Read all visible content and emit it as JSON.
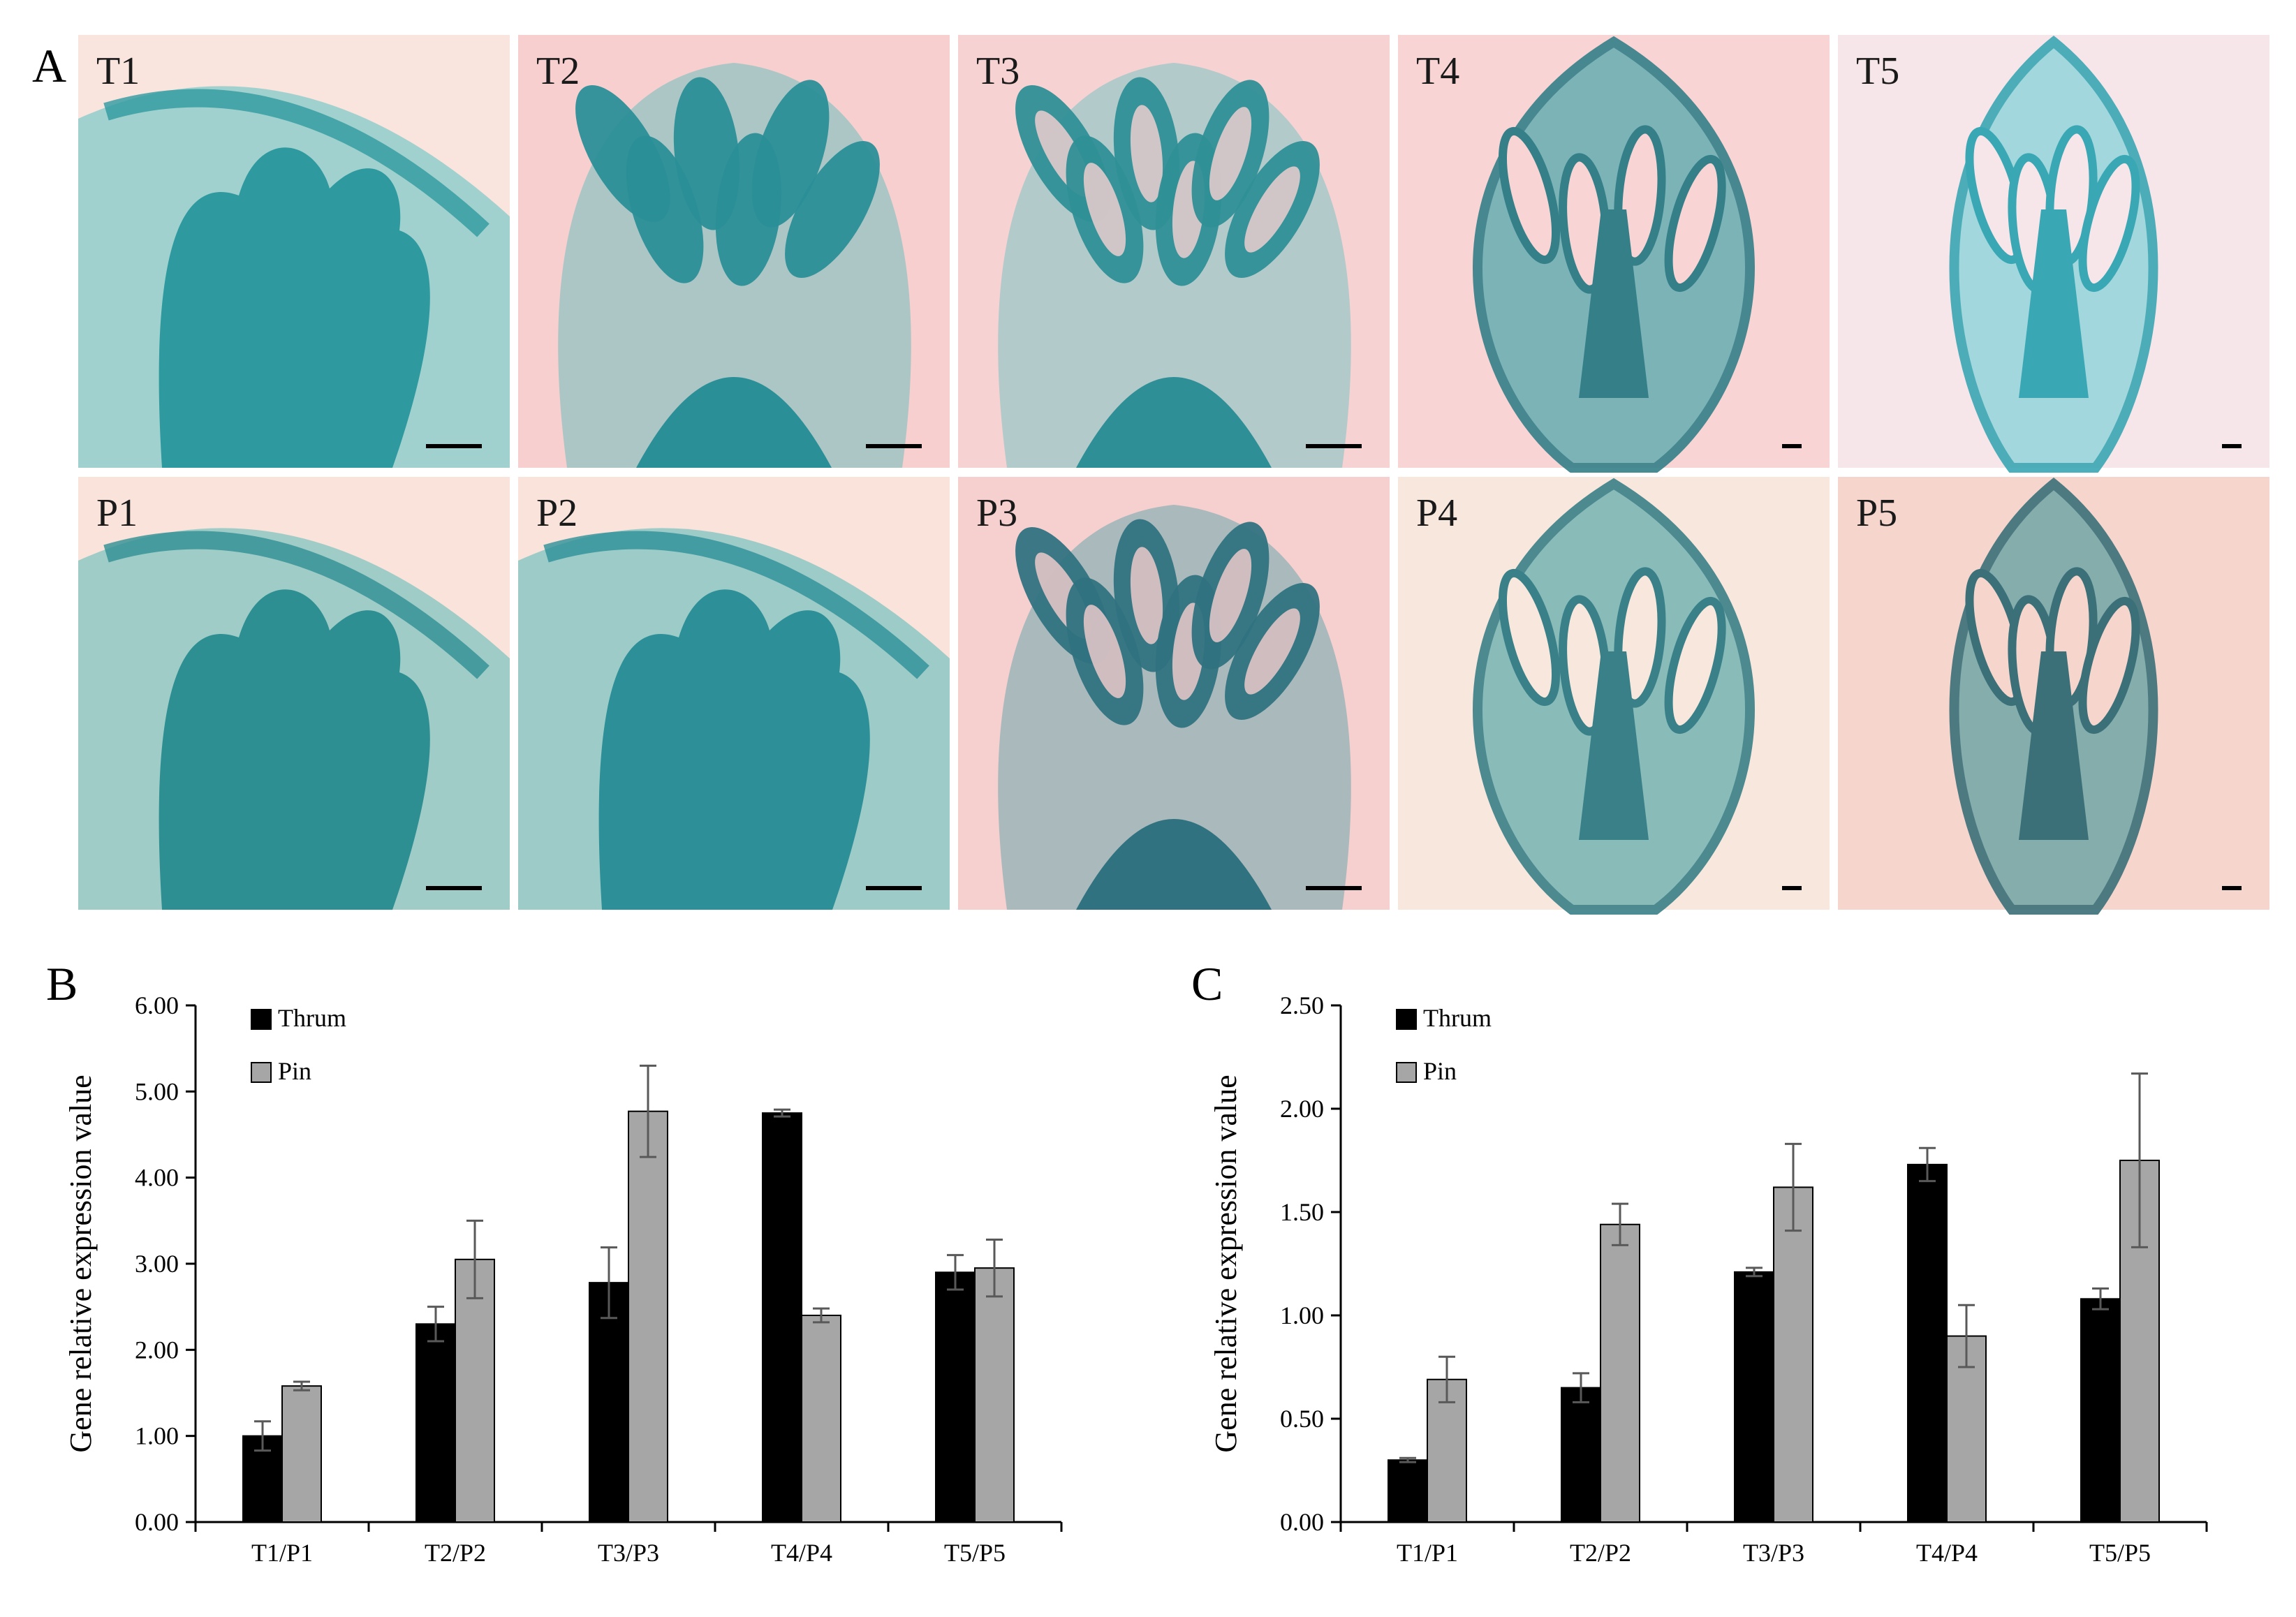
{
  "panel_a": {
    "letter": "A",
    "rows": [
      [
        {
          "label": "T1",
          "bg": "#f9e4de",
          "tissue": "#2e9aa0",
          "cells": "#7cc9c7"
        },
        {
          "label": "T2",
          "bg": "#f7cfcf",
          "tissue": "#2b8f98",
          "cells": "#70bfbf"
        },
        {
          "label": "T3",
          "bg": "#f7d2d2",
          "tissue": "#2f8f96",
          "cells": "#7cc3c4"
        },
        {
          "label": "T4",
          "bg": "#f8d4d4",
          "tissue": "#347f88",
          "cells": "#6fb0b3"
        },
        {
          "label": "T5",
          "bg": "#f6e6e9",
          "tissue": "#3aa7b4",
          "cells": "#9ad6dc"
        }
      ],
      [
        {
          "label": "P1",
          "bg": "#f9e3da",
          "tissue": "#2e8f93",
          "cells": "#79c2bf"
        },
        {
          "label": "P2",
          "bg": "#f9e3da",
          "tissue": "#2d9098",
          "cells": "#76c1c1"
        },
        {
          "label": "P3",
          "bg": "#f6cfcf",
          "tissue": "#30727f",
          "cells": "#6aa8ad"
        },
        {
          "label": "P4",
          "bg": "#f8e7dd",
          "tissue": "#3a8088",
          "cells": "#7db7b6"
        },
        {
          "label": "P5",
          "bg": "#f6d5cd",
          "tissue": "#3b7079",
          "cells": "#78a9a9"
        }
      ]
    ]
  },
  "colors": {
    "thrum": "#000000",
    "pin": "#a6a6a6",
    "error": "#595959",
    "axis": "#000000"
  },
  "chart_data": [
    {
      "panel": "B",
      "type": "bar",
      "categories": [
        "T1/P1",
        "T2/P2",
        "T3/P3",
        "T4/P4",
        "T5/P5"
      ],
      "ylabel": "Gene relative expression value",
      "xlabel": "",
      "ylim": [
        0,
        6
      ],
      "yticks": [
        "0.00",
        "1.00",
        "2.00",
        "3.00",
        "4.00",
        "5.00",
        "6.00"
      ],
      "legend_position": "top-left",
      "series": [
        {
          "name": "Thrum",
          "values": [
            1.0,
            2.3,
            2.78,
            4.75,
            2.9
          ],
          "errors": [
            0.17,
            0.2,
            0.41,
            0.04,
            0.2
          ]
        },
        {
          "name": "Pin",
          "values": [
            1.58,
            3.05,
            4.77,
            2.4,
            2.95
          ],
          "errors": [
            0.05,
            0.45,
            0.53,
            0.08,
            0.33
          ]
        }
      ]
    },
    {
      "panel": "C",
      "type": "bar",
      "categories": [
        "T1/P1",
        "T2/P2",
        "T3/P3",
        "T4/P4",
        "T5/P5"
      ],
      "ylabel": "Gene relative expression value",
      "xlabel": "",
      "ylim": [
        0,
        2.5
      ],
      "yticks": [
        "0.00",
        "0.50",
        "1.00",
        "1.50",
        "2.00",
        "2.50"
      ],
      "legend_position": "top-left",
      "series": [
        {
          "name": "Thrum",
          "values": [
            0.3,
            0.65,
            1.21,
            1.73,
            1.08
          ],
          "errors": [
            0.01,
            0.07,
            0.02,
            0.08,
            0.05
          ]
        },
        {
          "name": "Pin",
          "values": [
            0.69,
            1.44,
            1.62,
            0.9,
            1.75
          ],
          "errors": [
            0.11,
            0.1,
            0.21,
            0.15,
            0.42
          ]
        }
      ]
    }
  ]
}
